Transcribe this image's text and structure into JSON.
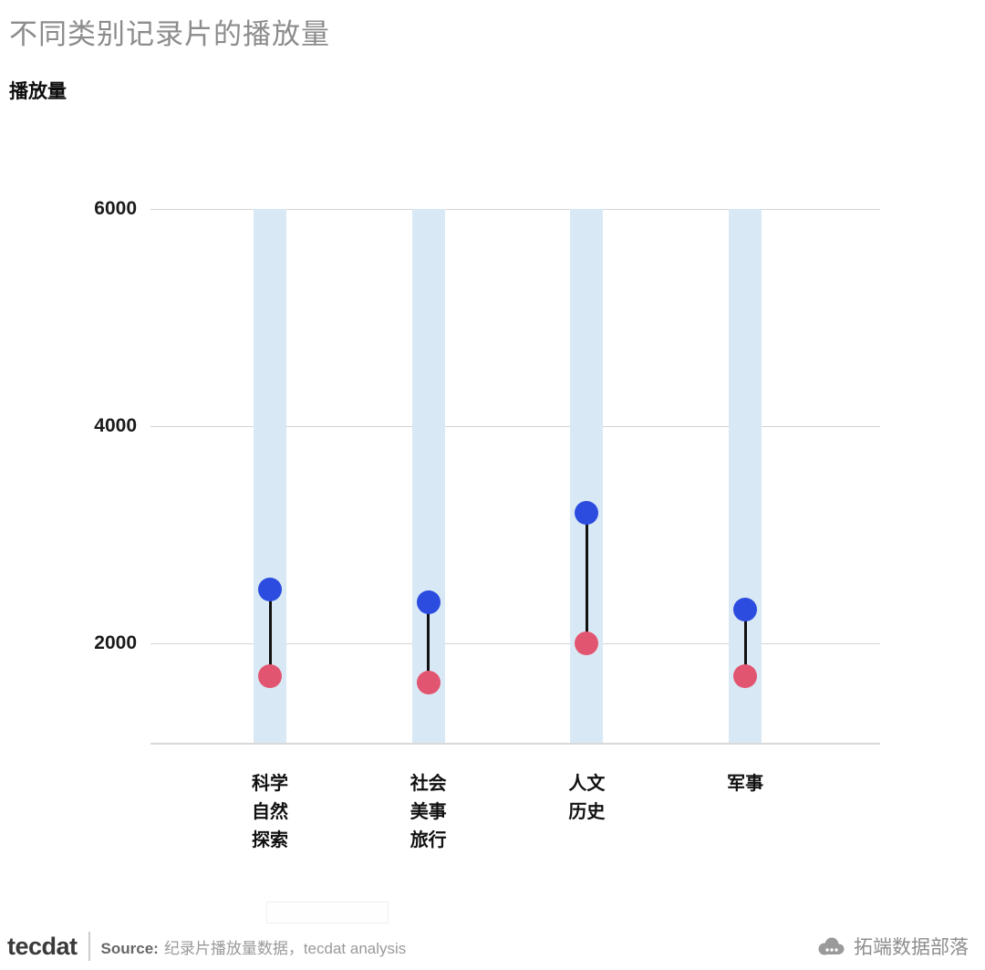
{
  "chart_data": {
    "type": "dumbbell",
    "title": "不同类别记录片的播放量",
    "ylabel": "播放量",
    "categories": [
      "科学自然探索",
      "社会美事旅行",
      "人文历史",
      "军事"
    ],
    "category_lines": [
      [
        "科学",
        "自然",
        "探索"
      ],
      [
        "社会",
        "美事",
        "旅行"
      ],
      [
        "人文",
        "历史"
      ],
      [
        "军事"
      ]
    ],
    "series": [
      {
        "name": "blue_dot",
        "color": "#2c4ce0",
        "values": [
          2500,
          2380,
          3200,
          2310
        ]
      },
      {
        "name": "pink_dot",
        "color": "#e25571",
        "values": [
          1700,
          1640,
          2000,
          1700
        ]
      }
    ],
    "yticks": [
      2000,
      4000,
      6000
    ],
    "ylim": [
      1076,
      6000
    ],
    "grid": true,
    "legend_position": "none",
    "band_color": "#d8e9f5",
    "connector_color": "#111111",
    "gridline_color": "#d4d4d4"
  },
  "footer": {
    "logo": "tecdat",
    "source_label": "Source:",
    "source_text": "纪录片播放量数据，tecdat analysis",
    "watermark": "拓端数据部落"
  }
}
